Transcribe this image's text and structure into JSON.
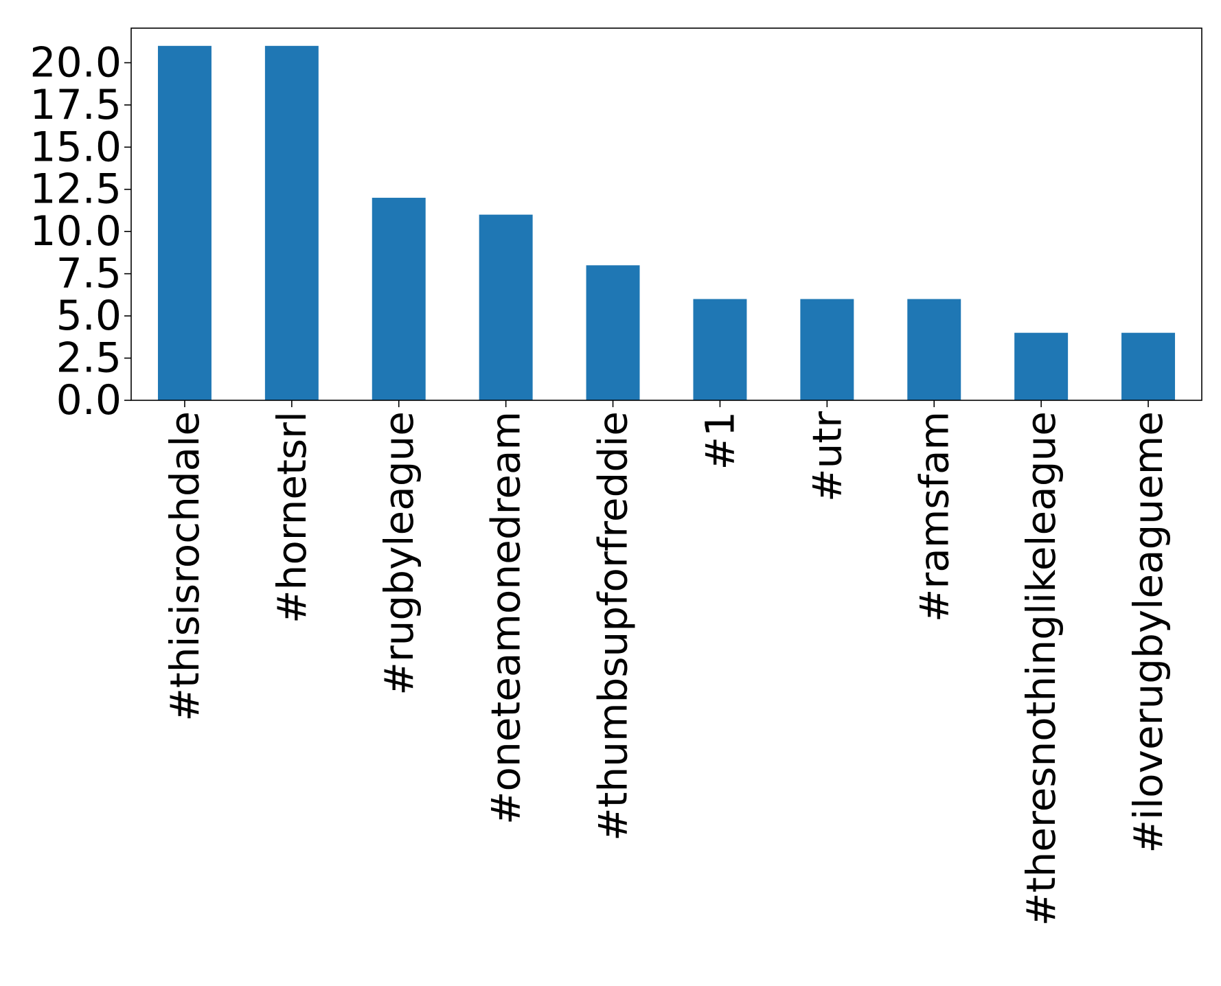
{
  "chart_data": {
    "type": "bar",
    "title": "",
    "xlabel": "",
    "ylabel": "",
    "categories": [
      "#thisisrochdale",
      "#hornetsrl",
      "#rugbyleague",
      "#oneteamonedream",
      "#thumbsupforfreddie",
      "#1",
      "#utr",
      "#ramsfam",
      "#theresnothinglikeleague",
      "#iloverugbyleagueme"
    ],
    "values": [
      21,
      21,
      12,
      11,
      8,
      6,
      6,
      6,
      4,
      4
    ],
    "ylim": [
      0,
      22.05
    ],
    "yticks": [
      0.0,
      2.5,
      5.0,
      7.5,
      10.0,
      12.5,
      15.0,
      17.5,
      20.0
    ],
    "ytick_labels": [
      "0.0",
      "2.5",
      "5.0",
      "7.5",
      "10.0",
      "12.5",
      "15.0",
      "17.5",
      "20.0"
    ],
    "grid": false,
    "legend": "none",
    "bar_color": "#1f77b4"
  }
}
